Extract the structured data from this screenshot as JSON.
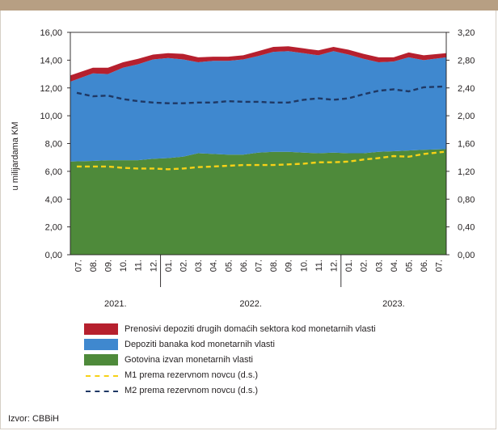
{
  "chart_data": {
    "type": "area",
    "ylabel": "u milijardama KM",
    "y_left_ticks": [
      "0,00",
      "2,00",
      "4,00",
      "6,00",
      "8,00",
      "10,00",
      "12,00",
      "14,00",
      "16,00"
    ],
    "y_right_ticks": [
      "0,00",
      "0,40",
      "0,80",
      "1,20",
      "1,60",
      "2,00",
      "2,40",
      "2,80",
      "3,20"
    ],
    "ylim_left": [
      0,
      16
    ],
    "ylim_right": [
      0,
      3.2
    ],
    "x_labels": [
      "07.",
      "08.",
      "09.",
      "10.",
      "11.",
      "12.",
      "01.",
      "02.",
      "03.",
      "04.",
      "05.",
      "06.",
      "07.",
      "08.",
      "09.",
      "10.",
      "11.",
      "12.",
      "01.",
      "02.",
      "03.",
      "04.",
      "05.",
      "06.",
      "07."
    ],
    "years": [
      "2021.",
      "2022.",
      "2023."
    ],
    "series": [
      {
        "name": "Gotovina izvan monetarnih vlasti",
        "kind": "stacked-area",
        "axis": "left",
        "color": "#4e8a3a",
        "values": [
          6.7,
          6.75,
          6.8,
          6.8,
          6.8,
          6.9,
          6.95,
          7.05,
          7.3,
          7.25,
          7.2,
          7.2,
          7.35,
          7.4,
          7.4,
          7.35,
          7.3,
          7.35,
          7.3,
          7.3,
          7.4,
          7.45,
          7.5,
          7.55,
          7.6
        ]
      },
      {
        "name": "Depoziti banaka kod monetarnih vlasti",
        "kind": "stacked-area",
        "axis": "left",
        "color": "#3f88cf",
        "values": [
          5.75,
          6.3,
          6.2,
          6.65,
          6.9,
          7.15,
          7.2,
          7.0,
          6.55,
          6.7,
          6.75,
          6.85,
          6.95,
          7.2,
          7.25,
          7.15,
          7.05,
          7.3,
          7.1,
          6.8,
          6.45,
          6.45,
          6.7,
          6.45,
          6.6
        ]
      },
      {
        "name": "Prenosivi depoziti drugih domaćih sektora kod monetarnih vlasti",
        "kind": "stacked-area",
        "axis": "left",
        "color": "#b6202e",
        "values": [
          0.45,
          0.4,
          0.45,
          0.4,
          0.4,
          0.35,
          0.35,
          0.4,
          0.35,
          0.3,
          0.3,
          0.3,
          0.35,
          0.35,
          0.35,
          0.35,
          0.35,
          0.3,
          0.35,
          0.35,
          0.35,
          0.3,
          0.35,
          0.35,
          0.3
        ]
      },
      {
        "name": "M1 prema rezervnom novcu (d.s.)",
        "kind": "dashed-line",
        "axis": "right",
        "color": "#f7d117",
        "values": [
          1.27,
          1.27,
          1.27,
          1.25,
          1.24,
          1.24,
          1.23,
          1.24,
          1.26,
          1.27,
          1.28,
          1.29,
          1.29,
          1.29,
          1.3,
          1.31,
          1.33,
          1.33,
          1.34,
          1.37,
          1.39,
          1.42,
          1.41,
          1.45,
          1.48
        ]
      },
      {
        "name": "M2 prema rezervnom novcu (d.s.)",
        "kind": "dashed-line",
        "axis": "right",
        "color": "#1f3864",
        "values": [
          2.33,
          2.28,
          2.29,
          2.24,
          2.21,
          2.19,
          2.18,
          2.18,
          2.19,
          2.19,
          2.21,
          2.2,
          2.2,
          2.19,
          2.19,
          2.23,
          2.25,
          2.23,
          2.25,
          2.31,
          2.36,
          2.38,
          2.35,
          2.41,
          2.42
        ]
      }
    ]
  },
  "legend": [
    {
      "label": "Prenosivi depoziti drugih domaćih sektora kod monetarnih vlasti",
      "color": "#b6202e",
      "style": "box"
    },
    {
      "label": "Depoziti banaka kod monetarnih vlasti",
      "color": "#3f88cf",
      "style": "box"
    },
    {
      "label": "Gotovina izvan monetarnih vlasti",
      "color": "#4e8a3a",
      "style": "box"
    },
    {
      "label": "M1 prema rezervnom novcu (d.s.)",
      "color": "#f7d117",
      "style": "dash"
    },
    {
      "label": "M2 prema rezervnom novcu (d.s.)",
      "color": "#1f3864",
      "style": "dash"
    }
  ],
  "source": "Izvor: CBBiH"
}
